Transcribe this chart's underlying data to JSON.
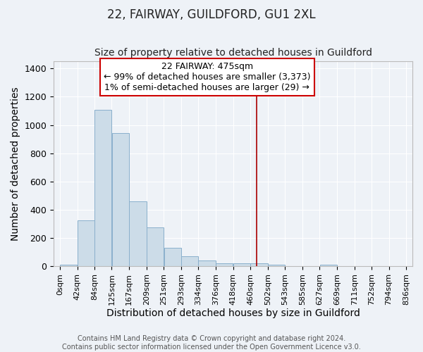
{
  "title": "22, FAIRWAY, GUILDFORD, GU1 2XL",
  "subtitle": "Size of property relative to detached houses in Guildford",
  "xlabel": "Distribution of detached houses by size in Guildford",
  "ylabel": "Number of detached properties",
  "bar_color": "#ccdce8",
  "bar_edge_color": "#8ab0cc",
  "background_color": "#eef2f7",
  "grid_color": "#ffffff",
  "bin_edges": [
    0,
    42,
    84,
    125,
    167,
    209,
    251,
    293,
    334,
    376,
    418,
    460,
    502,
    543,
    585,
    627,
    669,
    711,
    752,
    794,
    836
  ],
  "bin_labels": [
    "0sqm",
    "42sqm",
    "84sqm",
    "125sqm",
    "167sqm",
    "209sqm",
    "251sqm",
    "293sqm",
    "334sqm",
    "376sqm",
    "418sqm",
    "460sqm",
    "502sqm",
    "543sqm",
    "585sqm",
    "627sqm",
    "669sqm",
    "711sqm",
    "752sqm",
    "794sqm",
    "836sqm"
  ],
  "bar_heights": [
    10,
    325,
    1110,
    945,
    460,
    275,
    130,
    70,
    40,
    20,
    20,
    20,
    10,
    0,
    0,
    10,
    0,
    0,
    0,
    0
  ],
  "ylim": [
    0,
    1450
  ],
  "vline_x": 475,
  "vline_color": "#aa0000",
  "annotation_title": "22 FAIRWAY: 475sqm",
  "annotation_line1": "← 99% of detached houses are smaller (3,373)",
  "annotation_line2": "1% of semi-detached houses are larger (29) →",
  "annotation_box_color": "#ffffff",
  "annotation_box_edge": "#cc0000",
  "footer_line1": "Contains HM Land Registry data © Crown copyright and database right 2024.",
  "footer_line2": "Contains public sector information licensed under the Open Government Licence v3.0.",
  "title_fontsize": 12,
  "subtitle_fontsize": 10,
  "axis_label_fontsize": 10,
  "tick_label_fontsize": 8,
  "annotation_fontsize": 9,
  "footer_fontsize": 7,
  "ann_xleft_bin": 5,
  "ann_xright_bin": 12,
  "ann_ytop": 1430,
  "ann_ybottom": 1250
}
